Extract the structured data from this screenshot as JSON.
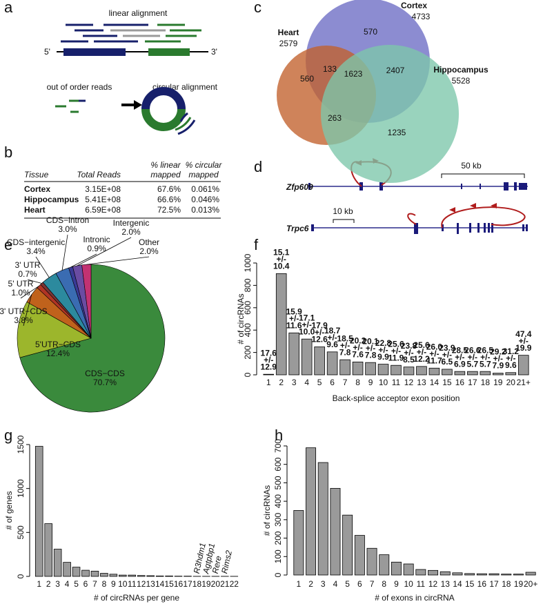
{
  "panel_labels": [
    "a",
    "b",
    "c",
    "d",
    "e",
    "f",
    "g",
    "h"
  ],
  "panel_a": {
    "linear_title": "linear alignment",
    "five_prime": "5'",
    "three_prime": "3'",
    "out_of_order": "out of order reads",
    "circular_title": "circular alignment"
  },
  "table": {
    "header": [
      [
        "Tissue"
      ],
      [
        "Total Reads"
      ],
      [
        "% linear",
        "mapped"
      ],
      [
        "% circular",
        "mapped"
      ]
    ],
    "rows": [
      [
        "Cortex",
        "3.15E+08",
        "67.6%",
        "0.061%"
      ],
      [
        "Hippocampus",
        "5.41E+08",
        "66.6%",
        "0.046%"
      ],
      [
        "Heart",
        "6.59E+08",
        "72.5%",
        "0.013%"
      ]
    ]
  },
  "panel_d": {
    "genes": [
      "Zfp609",
      "Trpc6"
    ],
    "scales": [
      "50 kb",
      "10 kb"
    ]
  },
  "chart_data": [
    {
      "type": "venn",
      "sets": [
        {
          "name": "Heart",
          "total": 2579,
          "color": "#c2602c"
        },
        {
          "name": "Cortex",
          "total": 4733,
          "color": "#6c6cc4"
        },
        {
          "name": "Hippocampus",
          "total": 5528,
          "color": "#7cc6aa"
        }
      ],
      "regions": [
        570,
        133,
        560,
        1623,
        2407,
        263,
        1235
      ]
    },
    {
      "type": "pie",
      "categories": [
        "CDS−CDS",
        "5'UTR−CDS",
        "3' UTR−CDS",
        "5' UTR",
        "3' UTR",
        "CDS−intergenic",
        "CDS−intron",
        "Intronic",
        "Intergenic",
        "Other"
      ],
      "values": [
        70.7,
        12.4,
        3.8,
        1.0,
        0.7,
        3.4,
        3.0,
        0.9,
        2.0,
        2.0
      ],
      "value_labels": [
        "70.7%",
        "12.4%",
        "3.8%",
        "1.0%",
        "0.7%",
        "3.4%",
        "3.0%",
        "0.9%",
        "2.0%",
        "2.0%"
      ],
      "colors": [
        "#3a8a3c",
        "#9cb62c",
        "#c0621c",
        "#b03424",
        "#7a3434",
        "#2c8a9e",
        "#3a6cb2",
        "#3a3a96",
        "#6a4ca2",
        "#c23272"
      ]
    },
    {
      "type": "bar",
      "xlabel": "Back-splice acceptor exon position",
      "ylabel": "# of circRNAs",
      "color": "#9a9a9a",
      "categories": [
        "1",
        "2",
        "3",
        "4",
        "5",
        "6",
        "7",
        "8",
        "9",
        "10",
        "11",
        "12",
        "13",
        "14",
        "15",
        "16",
        "17",
        "18",
        "19",
        "20",
        "21+"
      ],
      "values": [
        5,
        905,
        375,
        320,
        250,
        205,
        135,
        115,
        110,
        95,
        85,
        70,
        75,
        60,
        50,
        30,
        30,
        30,
        15,
        20,
        175
      ],
      "annotations": [
        [
          "17.6",
          "+/-",
          "12.9"
        ],
        [
          "15.1",
          "+/-",
          "10.4"
        ],
        [
          "15.9",
          "+/-",
          "11.6"
        ],
        [
          "17.1",
          "+/-",
          "10.0"
        ],
        [
          "17.9",
          "+/-",
          "12.6"
        ],
        [
          "18.7",
          "+/-",
          "9.6"
        ],
        [
          "18.5",
          "+/-",
          "7.8"
        ],
        [
          "20.2",
          "+/-",
          "7.6"
        ],
        [
          "20.1",
          "+/-",
          "7.8"
        ],
        [
          "22.8",
          "+/-",
          "9.9"
        ],
        [
          "25.6",
          "+/-",
          "11.9"
        ],
        [
          "23.8",
          "+/-",
          "8.5"
        ],
        [
          "25.6",
          "+/-",
          "12.2"
        ],
        [
          "26.0",
          "+/-",
          "11.7"
        ],
        [
          "23.9",
          "+/-",
          "6.5"
        ],
        [
          "28.5",
          "+/-",
          "6.9"
        ],
        [
          "26.6",
          "+/-",
          "5.7"
        ],
        [
          "26.5",
          "+/-",
          "5.7"
        ],
        [
          "29.2",
          "+/-",
          "7.9"
        ],
        [
          "31.2",
          "+/-",
          "9.6"
        ],
        [
          "47.4",
          "+/-",
          "19.9"
        ]
      ],
      "ylim": [
        0,
        1000
      ],
      "yticks": [
        0,
        200,
        400,
        600,
        800,
        1000
      ]
    },
    {
      "type": "bar",
      "xlabel": "# of circRNAs per gene",
      "ylabel": "# of genes",
      "color": "#9a9a9a",
      "categories": [
        "1",
        "2",
        "3",
        "4",
        "5",
        "6",
        "7",
        "8",
        "9",
        "10",
        "11",
        "12",
        "13",
        "14",
        "15",
        "16",
        "17",
        "18",
        "19",
        "20",
        "21",
        "22"
      ],
      "values": [
        1480,
        600,
        310,
        160,
        105,
        70,
        60,
        35,
        25,
        15,
        15,
        10,
        8,
        5,
        5,
        3,
        3,
        1,
        1,
        1,
        1,
        1
      ],
      "annotations": [
        "R3hdm1",
        "Agtpbp1",
        "Rere",
        "Rims2"
      ],
      "ylim": [
        0,
        1500
      ],
      "yticks": [
        0,
        500,
        1000,
        1500
      ]
    },
    {
      "type": "bar",
      "xlabel": "# of exons in circRNA",
      "ylabel": "# of circRNAs",
      "color": "#9a9a9a",
      "categories": [
        "1",
        "2",
        "3",
        "4",
        "5",
        "6",
        "7",
        "8",
        "9",
        "10",
        "11",
        "12",
        "13",
        "14",
        "15",
        "16",
        "17",
        "18",
        "19",
        "20+"
      ],
      "values": [
        350,
        690,
        610,
        470,
        325,
        215,
        145,
        110,
        70,
        60,
        30,
        25,
        18,
        12,
        8,
        7,
        7,
        5,
        5,
        15
      ],
      "ylim": [
        0,
        700
      ],
      "yticks": [
        0,
        100,
        200,
        300,
        400,
        500,
        600,
        700
      ]
    }
  ]
}
